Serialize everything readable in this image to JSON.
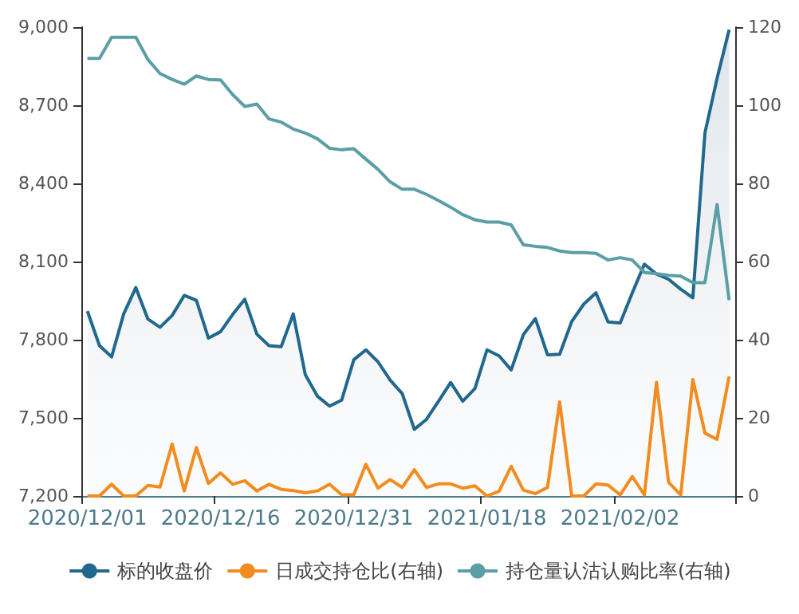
{
  "chart_data": {
    "type": "line",
    "categories": [
      "2020/12/01",
      null,
      null,
      null,
      null,
      null,
      null,
      null,
      null,
      null,
      null,
      "2020/12/16",
      null,
      null,
      null,
      null,
      null,
      null,
      null,
      null,
      null,
      null,
      "2020/12/31",
      null,
      null,
      null,
      null,
      null,
      null,
      null,
      null,
      null,
      null,
      "2021/01/18",
      null,
      null,
      null,
      null,
      null,
      null,
      null,
      null,
      null,
      null,
      "2021/02/02",
      null,
      null,
      null,
      null,
      null,
      null,
      null,
      null,
      null
    ],
    "series": [
      {
        "name": "标的收盘价",
        "type": "area",
        "color": "#21688f",
        "values": [
          7910,
          7777,
          7734,
          7899,
          8000,
          7879,
          7848,
          7893,
          7970,
          7951,
          7806,
          7831,
          7897,
          7955,
          7821,
          7777,
          7773,
          7899,
          7665,
          7583,
          7545,
          7568,
          7723,
          7761,
          7715,
          7645,
          7593,
          7456,
          7494,
          7564,
          7636,
          7564,
          7612,
          7761,
          7738,
          7684,
          7819,
          7881,
          7742,
          7744,
          7870,
          7937,
          7980,
          7868,
          7864,
          7980,
          8090,
          8052,
          8032,
          7994,
          7961,
          8594,
          8803,
          8990
        ]
      },
      {
        "name": "日成交持仓比(右轴)",
        "axis": "y2",
        "color": "#f28c1e",
        "values": [
          0,
          0,
          3,
          0,
          0,
          2.7,
          2.3,
          13.3,
          1.3,
          12.4,
          3.2,
          5.9,
          3,
          3.9,
          1.3,
          3,
          1.7,
          1.4,
          0.8,
          1.3,
          3,
          0.3,
          0.3,
          8.1,
          2,
          4.2,
          2.2,
          6.7,
          2.2,
          3.1,
          3.1,
          2,
          2.6,
          0,
          1.2,
          7.6,
          1.5,
          0.6,
          2.2,
          24.1,
          0,
          0,
          3.1,
          2.8,
          0.3,
          5,
          0.3,
          29.1,
          3.5,
          0.3,
          29.8,
          16.1,
          14.5,
          30.6
        ]
      },
      {
        "name": "持仓量认沽认购比率(右轴)",
        "axis": "y2",
        "color": "#5b9ea6",
        "values": [
          112,
          112,
          117.4,
          117.4,
          117.4,
          111.7,
          108.1,
          106.6,
          105.4,
          107.5,
          106.6,
          106.5,
          102.7,
          99.7,
          100.3,
          96.5,
          95.7,
          93.9,
          92.9,
          91.4,
          89,
          88.6,
          88.9,
          86.2,
          83.6,
          80.4,
          78.5,
          78.5,
          77.2,
          75.6,
          73.9,
          72,
          70.7,
          70.1,
          70.1,
          69.4,
          64.3,
          63.9,
          63.6,
          62.7,
          62.3,
          62.3,
          62.1,
          60.4,
          61,
          60.4,
          57.2,
          56.9,
          56.5,
          56.3,
          54.6,
          54.6,
          74.6,
          50.1
        ]
      }
    ],
    "ylim": [
      7200,
      9000
    ],
    "yticks": [
      {
        "value": 7200,
        "label": "7,200"
      },
      {
        "value": 7500,
        "label": "7,500"
      },
      {
        "value": 7800,
        "label": "7,800"
      },
      {
        "value": 8100,
        "label": "8,100"
      },
      {
        "value": 8400,
        "label": "8,400"
      },
      {
        "value": 8700,
        "label": "8,700"
      },
      {
        "value": 9000,
        "label": "9,000"
      }
    ],
    "y2lim": [
      0,
      120
    ],
    "y2ticks": [
      0,
      20,
      40,
      60,
      80,
      100,
      120
    ],
    "grid": false,
    "legend": "bottom"
  }
}
